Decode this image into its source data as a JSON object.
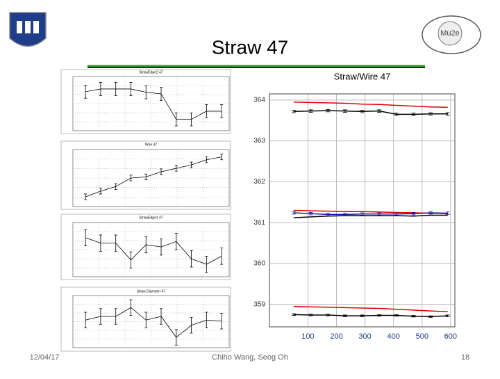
{
  "slide": {
    "title": "Straw 47",
    "date": "12/04/17",
    "authors": "Chiho Wang, Seog Oh",
    "page": "18",
    "logo_text": "Mu2e"
  },
  "chart_data": [
    {
      "type": "line",
      "title": "StrawEdge2 47",
      "x": [
        50,
        110,
        170,
        230,
        290,
        350,
        410,
        470,
        530,
        590
      ],
      "xlim": [
        0,
        620
      ],
      "ylim": [
        0,
        10
      ],
      "series": [
        {
          "color": "#000000",
          "values": [
            7.2,
            7.7,
            7.7,
            7.7,
            7.1,
            6.8,
            2.1,
            2.1,
            3.6,
            3.6
          ],
          "errors": [
            1.2,
            1.2,
            1.2,
            1.2,
            1.2,
            1.2,
            1.2,
            1.2,
            1.2,
            1.2
          ]
        }
      ]
    },
    {
      "type": "line",
      "title": "Wire 47",
      "x": [
        50,
        110,
        170,
        230,
        290,
        350,
        410,
        470,
        530,
        590
      ],
      "xlim": [
        0,
        620
      ],
      "ylim": [
        0,
        10
      ],
      "series": [
        {
          "color": "#000000",
          "values": [
            1.7,
            2.7,
            3.5,
            5.0,
            5.2,
            6.1,
            6.7,
            7.3,
            8.2,
            8.7
          ],
          "errors": [
            0.5,
            0.5,
            0.5,
            0.5,
            0.5,
            0.5,
            0.5,
            0.5,
            0.5,
            0.5
          ]
        }
      ]
    },
    {
      "type": "line",
      "title": "StrawEdge1 47",
      "x": [
        50,
        110,
        170,
        230,
        290,
        350,
        410,
        470,
        530,
        590
      ],
      "xlim": [
        0,
        620
      ],
      "ylim": [
        0,
        10
      ],
      "series": [
        {
          "color": "#000000",
          "values": [
            7.2,
            6.2,
            6.2,
            3.1,
            5.9,
            5.5,
            6.5,
            3.3,
            2.3,
            3.8
          ],
          "errors": [
            1.5,
            1.5,
            1.5,
            1.5,
            1.5,
            1.5,
            1.5,
            1.5,
            1.5,
            1.5
          ]
        }
      ]
    },
    {
      "type": "line",
      "title": "Straw Diameter 47",
      "x": [
        50,
        110,
        170,
        230,
        290,
        350,
        410,
        470,
        530,
        590
      ],
      "xlim": [
        0,
        620
      ],
      "ylim": [
        0,
        10
      ],
      "series": [
        {
          "color": "#000000",
          "values": [
            5.3,
            6.0,
            6.0,
            7.7,
            5.3,
            6.0,
            2.0,
            4.3,
            5.3,
            5.1
          ],
          "errors": [
            1.5,
            1.5,
            1.5,
            1.5,
            1.5,
            1.5,
            1.5,
            1.5,
            1.5,
            1.5
          ]
        }
      ]
    },
    {
      "type": "line",
      "title": "Straw/Wire 47",
      "x": [
        50,
        110,
        170,
        230,
        290,
        350,
        410,
        470,
        530,
        590
      ],
      "xlim": [
        -35,
        615
      ],
      "ylim": [
        358.45,
        364.15
      ],
      "xticks": [
        100,
        200,
        300,
        400,
        500,
        600
      ],
      "yticks": [
        359,
        360,
        361,
        362,
        363,
        364
      ],
      "series": [
        {
          "color": "#e00000",
          "values": [
            363.95,
            363.94,
            363.93,
            363.92,
            363.9,
            363.89,
            363.87,
            363.85,
            363.83,
            363.82
          ]
        },
        {
          "color": "#000000",
          "values": [
            363.72,
            363.73,
            363.74,
            363.73,
            363.72,
            363.73,
            363.65,
            363.65,
            363.66,
            363.66
          ],
          "errors": [
            0.03,
            0.03,
            0.03,
            0.03,
            0.03,
            0.03,
            0.03,
            0.03,
            0.03,
            0.03
          ]
        },
        {
          "color": "#e00000",
          "values": [
            361.3,
            361.29,
            361.28,
            361.27,
            361.27,
            361.26,
            361.25,
            361.24,
            361.23,
            361.22
          ]
        },
        {
          "color": "#1a1a9a",
          "values": [
            361.24,
            361.22,
            361.2,
            361.2,
            361.21,
            361.21,
            361.21,
            361.22,
            361.24,
            361.23
          ],
          "errors": [
            0.03,
            0.03,
            0.03,
            0.03,
            0.03,
            0.03,
            0.03,
            0.03,
            0.03,
            0.03
          ]
        },
        {
          "color": "#000000",
          "values": [
            361.12,
            361.14,
            361.16,
            361.17,
            361.17,
            361.17,
            361.17,
            361.16,
            361.18,
            361.18
          ]
        },
        {
          "color": "#e00000",
          "values": [
            358.95,
            358.94,
            358.93,
            358.92,
            358.91,
            358.9,
            358.88,
            358.86,
            358.84,
            358.82
          ]
        },
        {
          "color": "#000000",
          "values": [
            358.75,
            358.74,
            358.74,
            358.72,
            358.72,
            358.73,
            358.73,
            358.71,
            358.7,
            358.72
          ],
          "errors": [
            0.02,
            0.02,
            0.02,
            0.02,
            0.02,
            0.02,
            0.02,
            0.02,
            0.02,
            0.02
          ]
        }
      ]
    }
  ]
}
